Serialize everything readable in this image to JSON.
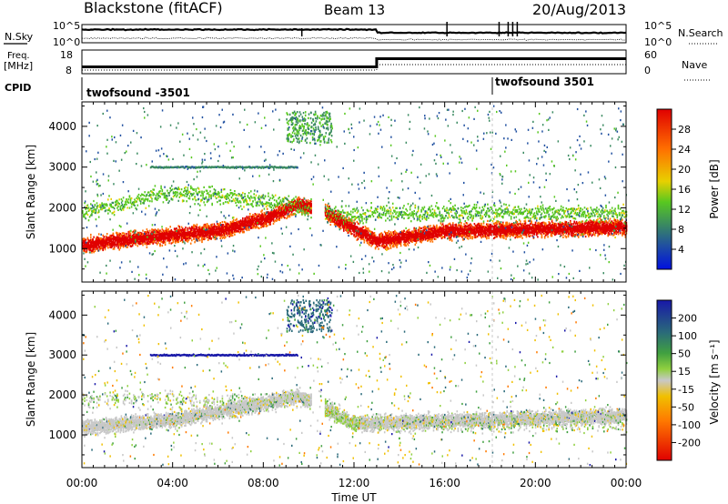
{
  "header": {
    "title_left": "Blackstone (fitACF)",
    "title_center": "Beam 13",
    "title_right": "20/Aug/2013"
  },
  "strip_labels": {
    "nsky": "N.Sky",
    "nsearch": "N.Search",
    "freq_top": "Freq.",
    "freq_unit": "[MHz]",
    "nave": "Nave",
    "cpid": "CPID",
    "noise_left_ticks": [
      "10^5",
      "10^0"
    ],
    "noise_right_ticks": [
      "10^5",
      "10^0"
    ],
    "freq_ticks": [
      "18",
      "8"
    ],
    "nave_ticks": [
      "60",
      "0"
    ]
  },
  "cpid_labels": [
    "twofsound -3501",
    "twofsound 3501"
  ],
  "x_axis": {
    "label": "Time UT",
    "tick_labels": [
      "00:00",
      "04:00",
      "08:00",
      "12:00",
      "16:00",
      "20:00",
      "00:00"
    ]
  },
  "power_colorbar": {
    "label": "Power [dB]",
    "ticks": [
      "28",
      "24",
      "20",
      "16",
      "12",
      "8",
      "4"
    ]
  },
  "velocity_colorbar": {
    "label": "Velocity [m s⁻¹]",
    "ticks": [
      "200",
      "100",
      "50",
      "15",
      "-15",
      "-50",
      "-100",
      "-200"
    ]
  },
  "chart_data": [
    {
      "type": "heatmap",
      "panel": "power",
      "ylabel": "Slant Range [km]",
      "xlabel": "",
      "xlim_hours": [
        0,
        24
      ],
      "ylim_km": [
        180,
        4600
      ],
      "y_ticks": [
        1000,
        2000,
        3000,
        4000
      ],
      "colorbar_range_db": [
        0,
        30
      ],
      "features": [
        {
          "name": "lower scatter band",
          "hours": [
            0,
            2,
            4,
            6,
            8,
            9.5,
            10.5,
            12,
            13,
            16,
            20,
            24
          ],
          "range_km": [
            1100,
            1250,
            1350,
            1450,
            1750,
            2100,
            2000,
            1500,
            1200,
            1450,
            1500,
            1550
          ],
          "power_db": 26
        },
        {
          "name": "upper diffuse band",
          "hours": [
            0,
            4,
            8,
            12,
            13,
            24
          ],
          "range_km": [
            1900,
            2400,
            2200,
            1800,
            1900,
            1900
          ],
          "power_db": 12
        },
        {
          "name": "3000 km echo line",
          "hours": [
            3,
            9.5
          ],
          "range_km": [
            3020,
            3020
          ],
          "power_db": 6
        },
        {
          "name": "far range patch",
          "hours": [
            9,
            11
          ],
          "range_km": [
            3600,
            4400
          ],
          "power_db": 10
        }
      ]
    },
    {
      "type": "heatmap",
      "panel": "velocity",
      "ylabel": "Slant Range [km]",
      "xlabel": "Time UT",
      "xlim_hours": [
        0,
        24
      ],
      "ylim_km": [
        180,
        4600
      ],
      "y_ticks": [
        1000,
        2000,
        3000,
        4000
      ],
      "colorbar_range_ms": [
        -250,
        250
      ],
      "features": [
        {
          "name": "ground scatter band",
          "hours": [
            0,
            4,
            8,
            9.5,
            12,
            24
          ],
          "range_km": [
            1200,
            1400,
            1800,
            2000,
            1300,
            1500
          ],
          "velocity_ms": 0
        },
        {
          "name": "receding band edge",
          "hours": [
            10.5,
            12
          ],
          "range_km": [
            1900,
            1300
          ],
          "velocity_ms": 25
        },
        {
          "name": "3000 km echo line",
          "hours": [
            3,
            9.5
          ],
          "range_km": [
            3020,
            3020
          ],
          "velocity_ms": 220
        },
        {
          "name": "far range patch",
          "hours": [
            9,
            11
          ],
          "range_km": [
            3600,
            4400
          ],
          "velocity_ms": 120
        }
      ]
    }
  ]
}
